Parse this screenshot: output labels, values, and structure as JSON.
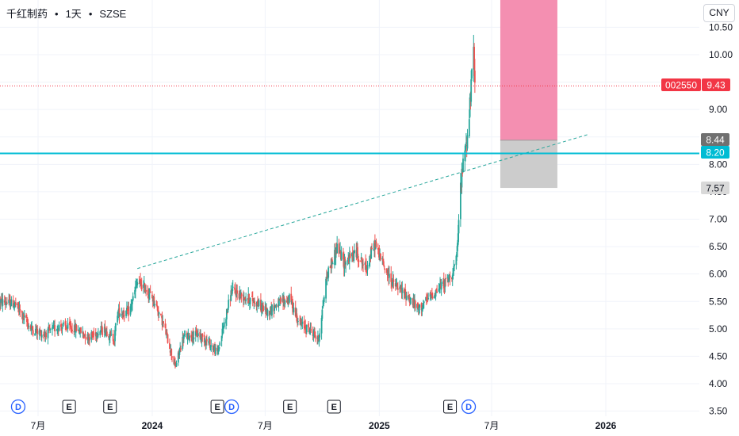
{
  "header": {
    "symbol_name": "千红制药",
    "separator": "•",
    "interval": "1天",
    "exchange": "SZSE",
    "currency": "CNY"
  },
  "colors": {
    "up": "#26a69a",
    "down": "#ef5350",
    "hline": "#00bcd4",
    "trend": "#26a69a",
    "target_zone": "#f48fb1",
    "stop_zone": "#cccccc",
    "price_tag": "#f23645",
    "gray_tag": "#707070",
    "event_blue": "#2962ff"
  },
  "chart_data": {
    "type": "candlestick",
    "symbol": "002550",
    "last_price": 9.43,
    "price_labels": {
      "last": "9.43",
      "symbol_tag": "002550",
      "level_upper": "8.44",
      "level_hline": "8.20",
      "level_lower": "7.57"
    },
    "y_ticks": [
      "3.50",
      "4.00",
      "4.50",
      "5.00",
      "5.50",
      "6.00",
      "6.50",
      "7.00",
      "7.50",
      "8.00",
      "8.50",
      "9.00",
      "9.50",
      "10.00",
      "10.50"
    ],
    "y_range": [
      3.5,
      10.5
    ],
    "x_ticks": [
      {
        "label": "7月",
        "x": "2023-07-01",
        "bold": false
      },
      {
        "label": "2024",
        "x": "2024-01-01",
        "bold": true
      },
      {
        "label": "7月",
        "x": "2024-07-01",
        "bold": false
      },
      {
        "label": "2025",
        "x": "2025-01-01",
        "bold": true
      },
      {
        "label": "7月",
        "x": "2025-07-01",
        "bold": false
      },
      {
        "label": "2026",
        "x": "2026-01-01",
        "bold": true
      }
    ],
    "horizontal_line": 8.2,
    "trend_line": {
      "from": {
        "x": "2023-12-08",
        "y": 6.1
      },
      "to": {
        "x": "2025-12-05",
        "y": 8.55
      }
    },
    "position_box": {
      "x_from": "2025-07-15",
      "x_to": "2025-10-15",
      "top": 10.5,
      "entry": 8.44,
      "stop": 7.57
    },
    "events": [
      {
        "type": "D",
        "x": "2023-05-30"
      },
      {
        "type": "E",
        "x": "2023-08-20"
      },
      {
        "type": "E",
        "x": "2023-10-25"
      },
      {
        "type": "E",
        "x": "2024-04-15"
      },
      {
        "type": "D",
        "x": "2024-05-08"
      },
      {
        "type": "E",
        "x": "2024-08-10"
      },
      {
        "type": "E",
        "x": "2024-10-20"
      },
      {
        "type": "E",
        "x": "2025-04-25"
      },
      {
        "type": "D",
        "x": "2025-05-25"
      }
    ],
    "anchors": [
      [
        "2023-05-01",
        5.5
      ],
      [
        "2023-05-25",
        5.45
      ],
      [
        "2023-06-20",
        5.0
      ],
      [
        "2023-07-10",
        4.9
      ],
      [
        "2023-08-05",
        5.05
      ],
      [
        "2023-09-01",
        5.0
      ],
      [
        "2023-09-20",
        4.85
      ],
      [
        "2023-10-15",
        5.0
      ],
      [
        "2023-11-01",
        4.8
      ],
      [
        "2023-11-05",
        5.3
      ],
      [
        "2023-11-25",
        5.3
      ],
      [
        "2023-12-08",
        5.85
      ],
      [
        "2023-12-20",
        5.75
      ],
      [
        "2024-01-05",
        5.5
      ],
      [
        "2024-01-20",
        5.05
      ],
      [
        "2024-02-07",
        4.3
      ],
      [
        "2024-02-20",
        4.85
      ],
      [
        "2024-03-15",
        4.9
      ],
      [
        "2024-04-01",
        4.75
      ],
      [
        "2024-04-15",
        4.55
      ],
      [
        "2024-04-25",
        5.05
      ],
      [
        "2024-05-08",
        5.7
      ],
      [
        "2024-05-25",
        5.6
      ],
      [
        "2024-06-15",
        5.5
      ],
      [
        "2024-07-05",
        5.3
      ],
      [
        "2024-07-20",
        5.45
      ],
      [
        "2024-08-10",
        5.55
      ],
      [
        "2024-08-25",
        5.1
      ],
      [
        "2024-09-15",
        4.95
      ],
      [
        "2024-09-25",
        4.8
      ],
      [
        "2024-10-08",
        5.95
      ],
      [
        "2024-10-25",
        6.5
      ],
      [
        "2024-11-05",
        6.2
      ],
      [
        "2024-11-25",
        6.4
      ],
      [
        "2024-12-10",
        6.1
      ],
      [
        "2024-12-25",
        6.55
      ],
      [
        "2025-01-10",
        6.1
      ],
      [
        "2025-01-25",
        5.8
      ],
      [
        "2025-02-15",
        5.6
      ],
      [
        "2025-03-05",
        5.35
      ],
      [
        "2025-03-25",
        5.6
      ],
      [
        "2025-04-08",
        5.75
      ],
      [
        "2025-04-18",
        5.85
      ],
      [
        "2025-04-28",
        6.0
      ],
      [
        "2025-05-06",
        6.3
      ],
      [
        "2025-05-12",
        7.6
      ],
      [
        "2025-05-16",
        8.0
      ],
      [
        "2025-05-20",
        8.4
      ],
      [
        "2025-05-24",
        8.5
      ],
      [
        "2025-05-28",
        9.3
      ],
      [
        "2025-06-02",
        10.0
      ],
      [
        "2025-06-04",
        9.43
      ]
    ]
  }
}
